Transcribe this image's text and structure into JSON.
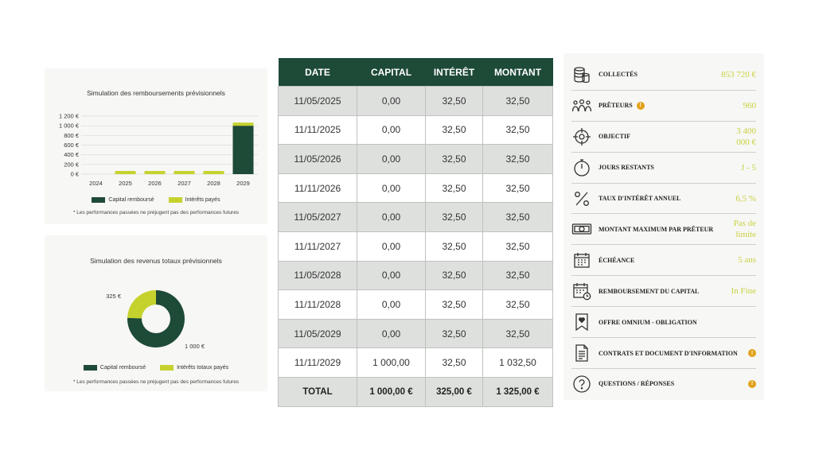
{
  "colors": {
    "dark_green": "#1e4a38",
    "lime": "#c5d22d",
    "value_text": "#c9d23f",
    "info_badge": "#e2a21a"
  },
  "bar_chart_card": {
    "title": "Simulation des remboursements prévisionnels",
    "legend": {
      "capital": "Capital remboursé",
      "interest": "Intérêts payés"
    },
    "disclaimer": "* Les performances passées ne préjugent pas des performances futures"
  },
  "donut_card": {
    "title": "Simulation des revenus totaux prévisionnels",
    "legend": {
      "capital": "Capital remboursé",
      "interest": "Intérêts totaux payés"
    },
    "label_interest": "325 €",
    "label_capital": "1 000 €",
    "disclaimer": "* Les performances passées ne préjugent pas des performances futures"
  },
  "chart_data": [
    {
      "type": "bar",
      "title": "Simulation des remboursements prévisionnels",
      "categories": [
        "2024",
        "2025",
        "2026",
        "2027",
        "2028",
        "2029"
      ],
      "y_ticks": [
        "0 €",
        "200 €",
        "400 €",
        "600 €",
        "800 €",
        "1 000 €",
        "1 200 €"
      ],
      "ylim": [
        0,
        1200
      ],
      "stacked": true,
      "series": [
        {
          "name": "Capital remboursé",
          "color": "#1e4a38",
          "values": [
            0,
            0,
            0,
            0,
            0,
            1000
          ]
        },
        {
          "name": "Intérêts payés",
          "color": "#c5d22d",
          "values": [
            0,
            65,
            65,
            65,
            65,
            65
          ]
        }
      ],
      "grid": true,
      "legend_position": "bottom"
    },
    {
      "type": "pie",
      "title": "Simulation des revenus totaux prévisionnels",
      "donut": true,
      "slices": [
        {
          "name": "Capital remboursé",
          "value": 1000,
          "color": "#1e4a38"
        },
        {
          "name": "Intérêts totaux payés",
          "value": 325,
          "color": "#c5d22d"
        }
      ],
      "legend_position": "bottom"
    }
  ],
  "schedule": {
    "headers": [
      "DATE",
      "CAPITAL",
      "INTÉRÊT",
      "MONTANT"
    ],
    "rows": [
      [
        "11/05/2025",
        "0,00",
        "32,50",
        "32,50"
      ],
      [
        "11/11/2025",
        "0,00",
        "32,50",
        "32,50"
      ],
      [
        "11/05/2026",
        "0,00",
        "32,50",
        "32,50"
      ],
      [
        "11/11/2026",
        "0,00",
        "32,50",
        "32,50"
      ],
      [
        "11/05/2027",
        "0,00",
        "32,50",
        "32,50"
      ],
      [
        "11/11/2027",
        "0,00",
        "32,50",
        "32,50"
      ],
      [
        "11/05/2028",
        "0,00",
        "32,50",
        "32,50"
      ],
      [
        "11/11/2028",
        "0,00",
        "32,50",
        "32,50"
      ],
      [
        "11/05/2029",
        "0,00",
        "32,50",
        "32,50"
      ],
      [
        "11/11/2029",
        "1 000,00",
        "32,50",
        "1 032,50"
      ]
    ],
    "total": [
      "TOTAL",
      "1 000,00 €",
      "325,00 €",
      "1 325,00 €"
    ]
  },
  "info_panel": [
    {
      "icon": "coins-icon",
      "label": "COLLECTÉS",
      "value": "853 720 €",
      "info": false
    },
    {
      "icon": "people-icon",
      "label": "PRÊTEURS",
      "value": "960",
      "info": true
    },
    {
      "icon": "target-icon",
      "label": "OBJECTIF",
      "value": "3 400 000 €",
      "info": false
    },
    {
      "icon": "stopwatch-icon",
      "label": "JOURS RESTANTS",
      "value": "J - 5",
      "info": false
    },
    {
      "icon": "percent-icon",
      "label": "TAUX D'INTÉRÊT ANNUEL",
      "value": "6,5 %",
      "info": false
    },
    {
      "icon": "banknote-icon",
      "label": "MONTANT MAXIMUM PAR PRÊTEUR",
      "value": "Pas de limite",
      "info": false
    },
    {
      "icon": "calendar-icon",
      "label": "ÉCHÉANCE",
      "value": "5 ans",
      "info": false
    },
    {
      "icon": "calendar-clock-icon",
      "label": "REMBOURSEMENT DU CAPITAL",
      "value": "In Fine",
      "info": false
    },
    {
      "icon": "bookmark-heart-icon",
      "label": "OFFRE OMNIUM - OBLIGATION",
      "value": "",
      "info": false
    },
    {
      "icon": "document-icon",
      "label": "CONTRATS ET DOCUMENT D'INFORMATION",
      "value": "",
      "info": true
    },
    {
      "icon": "question-icon",
      "label": "QUESTIONS / RÉPONSES",
      "value": "",
      "info": true
    }
  ]
}
